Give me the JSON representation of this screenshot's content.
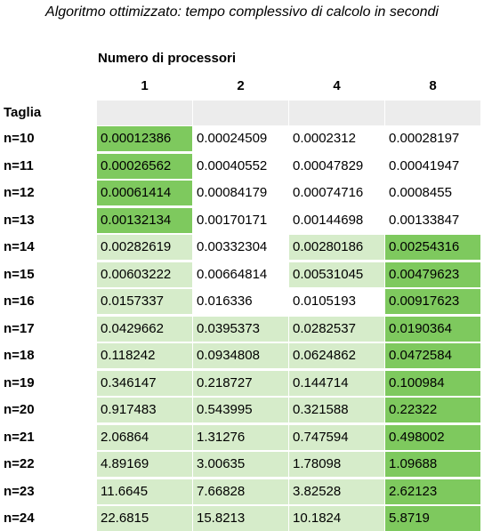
{
  "chart_data": {
    "type": "table",
    "title": "Algoritmo ottimizzato: tempo complessivo di calcolo in secondi",
    "column_header_label": "Numero di processori",
    "row_header_label": "Taglia",
    "columns": [
      "1",
      "2",
      "4",
      "8"
    ],
    "rows": [
      {
        "label": "n=10",
        "values": [
          "0.00012386",
          "0.00024509",
          "0.0002312",
          "0.00028197"
        ],
        "shading": [
          "dark",
          "none",
          "none",
          "none"
        ]
      },
      {
        "label": "n=11",
        "values": [
          "0.00026562",
          "0.00040552",
          "0.00047829",
          "0.00041947"
        ],
        "shading": [
          "dark",
          "none",
          "none",
          "none"
        ]
      },
      {
        "label": "n=12",
        "values": [
          "0.00061414",
          "0.00084179",
          "0.00074716",
          "0.0008455"
        ],
        "shading": [
          "dark",
          "none",
          "none",
          "none"
        ]
      },
      {
        "label": "n=13",
        "values": [
          "0.00132134",
          "0.00170171",
          "0.00144698",
          "0.00133847"
        ],
        "shading": [
          "dark",
          "none",
          "none",
          "none"
        ]
      },
      {
        "label": "n=14",
        "values": [
          "0.00282619",
          "0.00332304",
          "0.00280186",
          "0.00254316"
        ],
        "shading": [
          "light",
          "none",
          "light",
          "dark"
        ]
      },
      {
        "label": "n=15",
        "values": [
          "0.00603222",
          "0.00664814",
          "0.00531045",
          "0.00479623"
        ],
        "shading": [
          "light",
          "none",
          "light",
          "dark"
        ]
      },
      {
        "label": "n=16",
        "values": [
          "0.0157337",
          "0.016336",
          "0.0105193",
          "0.00917623"
        ],
        "shading": [
          "light",
          "none",
          "none",
          "dark"
        ]
      },
      {
        "label": "n=17",
        "values": [
          "0.0429662",
          "0.0395373",
          "0.0282537",
          "0.0190364"
        ],
        "shading": [
          "light",
          "light",
          "light",
          "dark"
        ]
      },
      {
        "label": "n=18",
        "values": [
          "0.118242",
          "0.0934808",
          "0.0624862",
          "0.0472584"
        ],
        "shading": [
          "light",
          "light",
          "light",
          "dark"
        ]
      },
      {
        "label": "n=19",
        "values": [
          "0.346147",
          "0.218727",
          "0.144714",
          "0.100984"
        ],
        "shading": [
          "light",
          "light",
          "light",
          "dark"
        ]
      },
      {
        "label": "n=20",
        "values": [
          "0.917483",
          "0.543995",
          "0.321588",
          "0.22322"
        ],
        "shading": [
          "light",
          "light",
          "light",
          "dark"
        ]
      },
      {
        "label": "n=21",
        "values": [
          "2.06864",
          "1.31276",
          "0.747594",
          "0.498002"
        ],
        "shading": [
          "light",
          "light",
          "light",
          "dark"
        ]
      },
      {
        "label": "n=22",
        "values": [
          "4.89169",
          "3.00635",
          "1.78098",
          "1.09688"
        ],
        "shading": [
          "light",
          "light",
          "light",
          "dark"
        ]
      },
      {
        "label": "n=23",
        "values": [
          "11.6645",
          "7.66828",
          "3.82528",
          "2.62123"
        ],
        "shading": [
          "light",
          "light",
          "light",
          "dark"
        ]
      },
      {
        "label": "n=24",
        "values": [
          "22.6815",
          "15.8213",
          "10.1824",
          "5.8719"
        ],
        "shading": [
          "light",
          "light",
          "light",
          "dark"
        ]
      }
    ]
  },
  "colors": {
    "dark": "#7ec95e",
    "light": "#d6ecca",
    "none": "#ffffff",
    "header": "#ececec"
  }
}
